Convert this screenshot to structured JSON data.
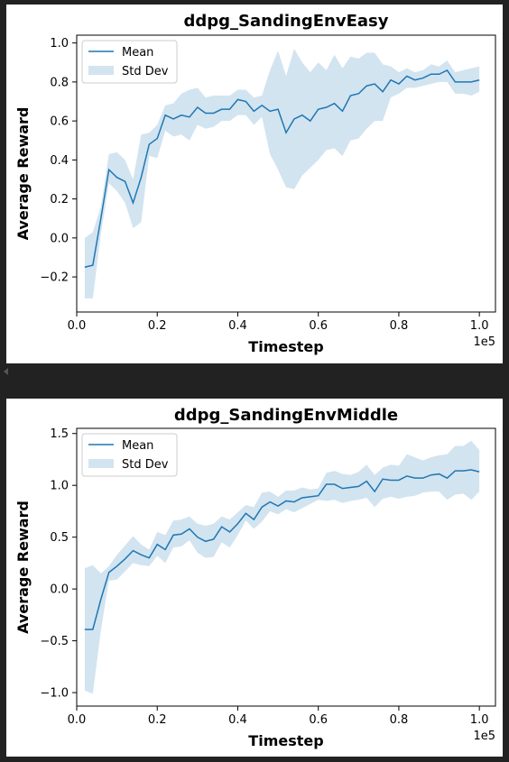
{
  "colors": {
    "mean_line": "#1f77b4",
    "std_fill": "#1f77b4",
    "background": "#222222"
  },
  "chart_data": [
    {
      "type": "line",
      "title": "ddpg_SandingEnvEasy",
      "xlabel": "Timestep",
      "ylabel": "Average Reward",
      "x_offset_text": "1e5",
      "xlim": [
        0.0,
        1.04
      ],
      "ylim": [
        -0.38,
        1.04
      ],
      "xticks": [
        0.0,
        0.2,
        0.4,
        0.6,
        0.8,
        1.0
      ],
      "xtick_labels": [
        "0.0",
        "0.2",
        "0.4",
        "0.6",
        "0.8",
        "1.0"
      ],
      "yticks": [
        -0.2,
        0.0,
        0.2,
        0.4,
        0.6,
        0.8,
        1.0
      ],
      "ytick_labels": [
        "−0.2",
        "0.0",
        "0.2",
        "0.4",
        "0.6",
        "0.8",
        "1.0"
      ],
      "legend": [
        "Mean",
        "Std Dev"
      ],
      "legend_position": "upper-left",
      "x": [
        0.02,
        0.04,
        0.06,
        0.08,
        0.1,
        0.12,
        0.14,
        0.16,
        0.18,
        0.2,
        0.22,
        0.24,
        0.26,
        0.28,
        0.3,
        0.32,
        0.34,
        0.36,
        0.38,
        0.4,
        0.42,
        0.44,
        0.46,
        0.48,
        0.5,
        0.52,
        0.54,
        0.56,
        0.58,
        0.6,
        0.62,
        0.64,
        0.66,
        0.68,
        0.7,
        0.72,
        0.74,
        0.76,
        0.78,
        0.8,
        0.82,
        0.84,
        0.86,
        0.88,
        0.9,
        0.92,
        0.94,
        0.96,
        0.98,
        1.0
      ],
      "series": [
        {
          "name": "Mean",
          "values": [
            -0.15,
            -0.14,
            0.1,
            0.35,
            0.31,
            0.29,
            0.18,
            0.31,
            0.48,
            0.51,
            0.63,
            0.61,
            0.63,
            0.62,
            0.67,
            0.64,
            0.64,
            0.66,
            0.66,
            0.71,
            0.7,
            0.65,
            0.68,
            0.65,
            0.66,
            0.54,
            0.61,
            0.63,
            0.6,
            0.66,
            0.67,
            0.69,
            0.65,
            0.73,
            0.74,
            0.78,
            0.79,
            0.75,
            0.81,
            0.79,
            0.83,
            0.81,
            0.82,
            0.84,
            0.84,
            0.86,
            0.8,
            0.8,
            0.8,
            0.81
          ],
          "lower": [
            -0.31,
            -0.31,
            0.02,
            0.28,
            0.24,
            0.18,
            0.05,
            0.08,
            0.42,
            0.41,
            0.55,
            0.52,
            0.53,
            0.5,
            0.58,
            0.56,
            0.57,
            0.6,
            0.6,
            0.63,
            0.63,
            0.58,
            0.62,
            0.43,
            0.35,
            0.26,
            0.25,
            0.32,
            0.36,
            0.4,
            0.45,
            0.46,
            0.42,
            0.5,
            0.51,
            0.56,
            0.6,
            0.6,
            0.72,
            0.74,
            0.77,
            0.77,
            0.78,
            0.79,
            0.8,
            0.8,
            0.74,
            0.74,
            0.73,
            0.75
          ],
          "upper": [
            0.0,
            0.03,
            0.16,
            0.43,
            0.44,
            0.4,
            0.3,
            0.53,
            0.54,
            0.58,
            0.68,
            0.69,
            0.74,
            0.76,
            0.77,
            0.72,
            0.73,
            0.73,
            0.73,
            0.76,
            0.76,
            0.72,
            0.73,
            0.86,
            0.96,
            0.83,
            0.97,
            0.9,
            0.85,
            0.9,
            0.86,
            0.94,
            0.87,
            0.93,
            0.92,
            0.95,
            0.95,
            0.89,
            0.88,
            0.85,
            0.87,
            0.85,
            0.86,
            0.89,
            0.88,
            0.91,
            0.85,
            0.86,
            0.87,
            0.88
          ]
        }
      ]
    },
    {
      "type": "line",
      "title": "ddpg_SandingEnvMiddle",
      "xlabel": "Timestep",
      "ylabel": "Average Reward",
      "x_offset_text": "1e5",
      "xlim": [
        0.0,
        1.04
      ],
      "ylim": [
        -1.13,
        1.55
      ],
      "xticks": [
        0.0,
        0.2,
        0.4,
        0.6,
        0.8,
        1.0
      ],
      "xtick_labels": [
        "0.0",
        "0.2",
        "0.4",
        "0.6",
        "0.8",
        "1.0"
      ],
      "yticks": [
        -1.0,
        -0.5,
        0.0,
        0.5,
        1.0,
        1.5
      ],
      "ytick_labels": [
        "−1.0",
        "−0.5",
        "0.0",
        "0.5",
        "1.0",
        "1.5"
      ],
      "legend": [
        "Mean",
        "Std Dev"
      ],
      "legend_position": "upper-left",
      "x": [
        0.02,
        0.04,
        0.06,
        0.08,
        0.1,
        0.12,
        0.14,
        0.16,
        0.18,
        0.2,
        0.22,
        0.24,
        0.26,
        0.28,
        0.3,
        0.32,
        0.34,
        0.36,
        0.38,
        0.4,
        0.42,
        0.44,
        0.46,
        0.48,
        0.5,
        0.52,
        0.54,
        0.56,
        0.58,
        0.6,
        0.62,
        0.64,
        0.66,
        0.68,
        0.7,
        0.72,
        0.74,
        0.76,
        0.78,
        0.8,
        0.82,
        0.84,
        0.86,
        0.88,
        0.9,
        0.92,
        0.94,
        0.96,
        0.98,
        1.0
      ],
      "series": [
        {
          "name": "Mean",
          "values": [
            -0.39,
            -0.39,
            -0.1,
            0.16,
            0.22,
            0.29,
            0.37,
            0.33,
            0.3,
            0.43,
            0.38,
            0.52,
            0.53,
            0.58,
            0.5,
            0.46,
            0.48,
            0.6,
            0.55,
            0.63,
            0.73,
            0.67,
            0.79,
            0.84,
            0.8,
            0.85,
            0.84,
            0.88,
            0.89,
            0.9,
            1.01,
            1.01,
            0.97,
            0.98,
            0.99,
            1.04,
            0.94,
            1.06,
            1.05,
            1.05,
            1.09,
            1.07,
            1.07,
            1.1,
            1.11,
            1.07,
            1.14,
            1.14,
            1.15,
            1.13
          ],
          "lower": [
            -0.98,
            -1.01,
            -0.4,
            0.08,
            0.09,
            0.17,
            0.25,
            0.23,
            0.22,
            0.32,
            0.25,
            0.4,
            0.41,
            0.47,
            0.35,
            0.3,
            0.31,
            0.45,
            0.4,
            0.52,
            0.66,
            0.58,
            0.65,
            0.75,
            0.72,
            0.77,
            0.74,
            0.78,
            0.82,
            0.86,
            0.85,
            0.86,
            0.83,
            0.85,
            0.86,
            0.88,
            0.79,
            0.87,
            0.89,
            0.87,
            0.89,
            0.9,
            0.93,
            0.94,
            0.94,
            0.86,
            0.91,
            0.92,
            0.86,
            0.94
          ],
          "upper": [
            0.2,
            0.23,
            0.15,
            0.22,
            0.33,
            0.42,
            0.51,
            0.43,
            0.38,
            0.55,
            0.52,
            0.66,
            0.67,
            0.7,
            0.63,
            0.61,
            0.63,
            0.7,
            0.67,
            0.74,
            0.81,
            0.79,
            0.93,
            0.94,
            0.89,
            0.95,
            0.95,
            0.98,
            0.96,
            0.97,
            1.12,
            1.14,
            1.11,
            1.1,
            1.13,
            1.2,
            1.1,
            1.17,
            1.2,
            1.19,
            1.3,
            1.27,
            1.24,
            1.27,
            1.29,
            1.3,
            1.38,
            1.38,
            1.43,
            1.34
          ]
        }
      ]
    }
  ]
}
